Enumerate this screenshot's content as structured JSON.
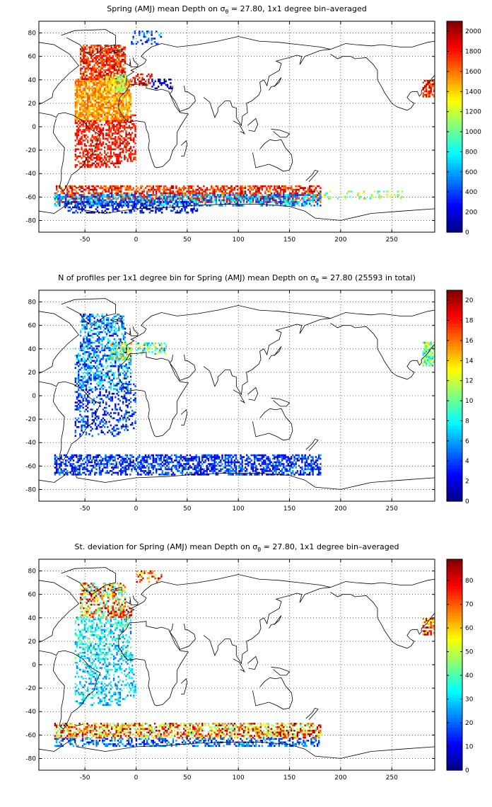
{
  "panels": [
    {
      "title_prefix": "Spring (AMJ) mean Depth on ",
      "title_sigma": "σ",
      "title_sub": "θ",
      "title_suffix": " = 27.80, 1x1 degree bin–averaged",
      "colorbar_ticks": [
        "0",
        "200",
        "400",
        "600",
        "800",
        "1000",
        "1200",
        "1400",
        "1600",
        "1800",
        "2000"
      ],
      "colorbar_range": [
        0,
        2100
      ]
    },
    {
      "title_prefix": "N of profiles per 1x1 degree bin for Spring (AMJ) mean Depth on ",
      "title_sigma": "σ",
      "title_sub": "θ",
      "title_suffix": " = 27.80 (25593 in total)",
      "colorbar_ticks": [
        "0",
        "2",
        "4",
        "6",
        "8",
        "10",
        "12",
        "14",
        "16",
        "18",
        "20"
      ],
      "colorbar_range": [
        0,
        21
      ]
    },
    {
      "title_prefix": "St. deviation for Spring (AMJ) mean Depth on ",
      "title_sigma": "σ",
      "title_sub": "θ",
      "title_suffix": " = 27.80, 1x1 degree bin–averaged",
      "colorbar_ticks": [
        "0",
        "10",
        "20",
        "30",
        "40",
        "50",
        "60",
        "70",
        "80"
      ],
      "colorbar_range": [
        0,
        89
      ]
    }
  ],
  "map_axes": {
    "x_ticks": [
      "-50",
      "0",
      "50",
      "100",
      "150",
      "200",
      "250"
    ],
    "x_range": [
      -95,
      292
    ],
    "y_ticks": [
      "80",
      "60",
      "40",
      "20",
      "0",
      "-20",
      "-40",
      "-60",
      "-80"
    ],
    "y_range": [
      -90,
      90
    ],
    "grid": "dotted"
  },
  "colormap": "jet"
}
